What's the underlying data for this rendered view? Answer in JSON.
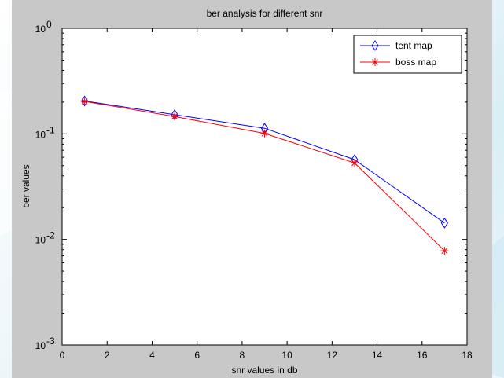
{
  "chart_data": {
    "type": "line",
    "title": "ber analysis for different snr",
    "xlabel": "snr values in db",
    "ylabel": "ber values",
    "xlim": [
      0,
      18
    ],
    "ylim": [
      0.001,
      1
    ],
    "yscale": "log",
    "grid": false,
    "legend_position": "top-right",
    "xticks": [
      "0",
      "2",
      "4",
      "6",
      "8",
      "10",
      "12",
      "14",
      "16",
      "18"
    ],
    "yticks": [
      {
        "base": "10",
        "exp": "0"
      },
      {
        "base": "10",
        "exp": "-1"
      },
      {
        "base": "10",
        "exp": "-2"
      },
      {
        "base": "10",
        "exp": "-3"
      }
    ],
    "x": [
      1,
      5,
      9,
      13,
      17
    ],
    "series": [
      {
        "name": "tent map",
        "marker": "diamond",
        "color": "#0000ff",
        "values": [
          0.205,
          0.152,
          0.113,
          0.057,
          0.0143
        ]
      },
      {
        "name": "boss map",
        "marker": "asterisk",
        "color": "#ff0000",
        "values": [
          0.203,
          0.146,
          0.101,
          0.053,
          0.0078
        ]
      }
    ]
  }
}
